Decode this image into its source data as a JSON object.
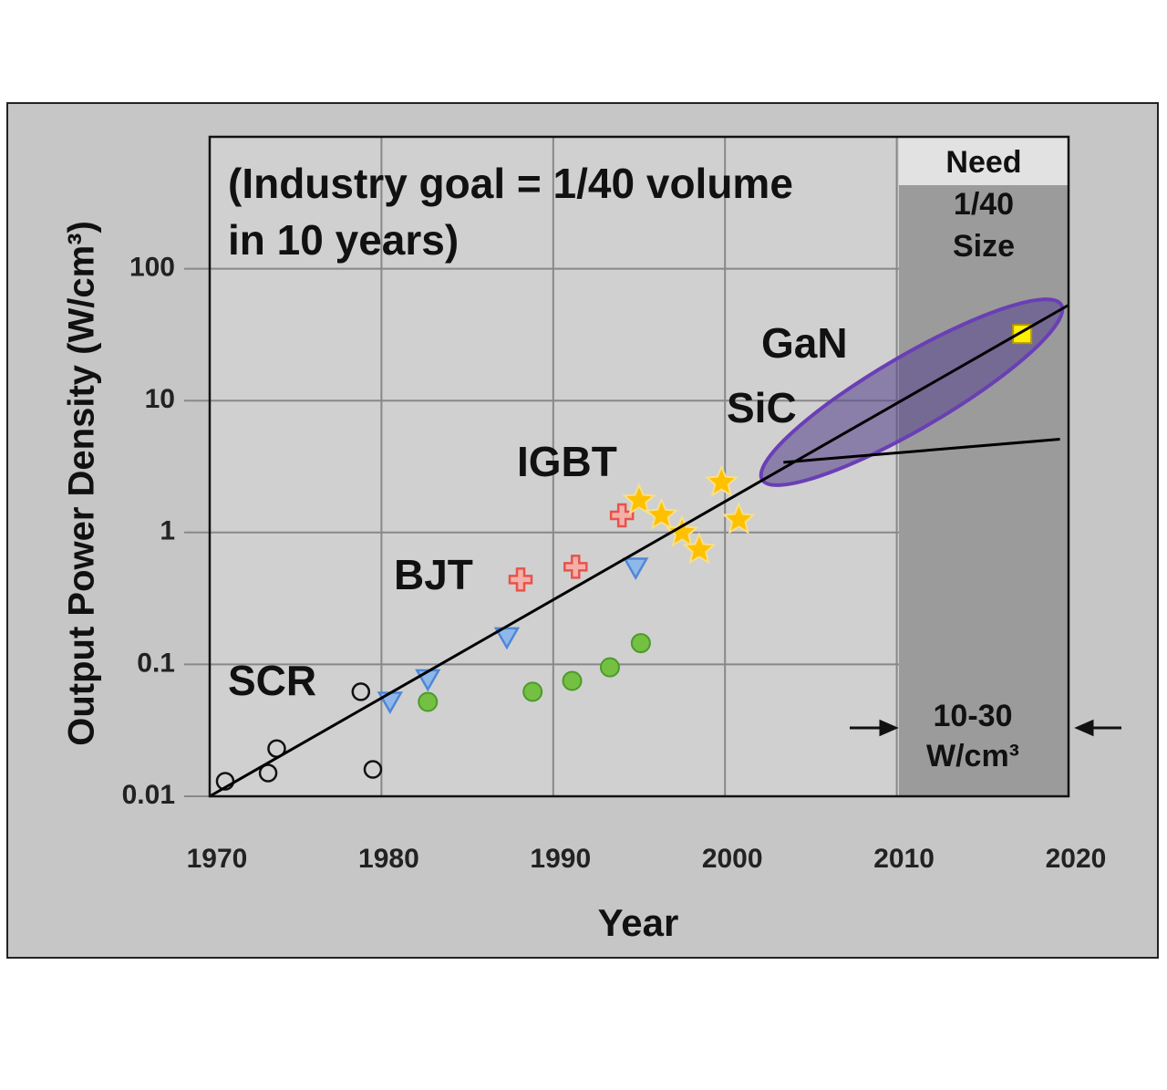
{
  "chart_data": {
    "type": "scatter",
    "xlabel": "Year",
    "ylabel": "Output Power Density (W/cm³)",
    "xlim": [
      1970,
      2020
    ],
    "xticks": [
      1970,
      1980,
      1990,
      2000,
      2010,
      2020
    ],
    "ylim": [
      0.01,
      1000
    ],
    "yticks": [
      0.01,
      0.1,
      1,
      10,
      100
    ],
    "log_y": true,
    "grid": true,
    "annotations": [
      "(Industry goal = 1/40 volume",
      "in 10 years)",
      "SCR",
      "BJT",
      "IGBT",
      "SiC",
      "GaN",
      "Need",
      "1/40",
      "Size",
      "10-30",
      "W/cm³"
    ],
    "series": [
      {
        "marker": "open-circle",
        "color": "#111111",
        "x": [
          1970.9,
          1973.4,
          1973.9,
          1978.8,
          1979.5
        ],
        "values": [
          0.013,
          0.015,
          0.023,
          0.062,
          0.016
        ]
      },
      {
        "marker": "triangle-down",
        "color": "#4f87d6",
        "x": [
          1980.5,
          1982.7,
          1987.3,
          1994.8
        ],
        "values": [
          0.052,
          0.077,
          0.16,
          0.54
        ]
      },
      {
        "marker": "circle",
        "color": "#74c043",
        "x": [
          1982.7,
          1988.8,
          1991.1,
          1993.3,
          1995.1
        ],
        "values": [
          0.052,
          0.062,
          0.075,
          0.095,
          0.145
        ]
      },
      {
        "marker": "cross",
        "color": "#e8534a",
        "x": [
          1988.1,
          1991.3,
          1994.0
        ],
        "values": [
          0.44,
          0.55,
          1.35
        ]
      },
      {
        "marker": "star",
        "color": "#ffc000",
        "x": [
          1995.0,
          1996.3,
          1997.5,
          1998.5,
          1999.8,
          2000.8
        ],
        "values": [
          1.75,
          1.35,
          1.0,
          0.74,
          2.4,
          1.25
        ]
      },
      {
        "marker": "square",
        "color": "#ffef00",
        "x": [
          2017.3
        ],
        "values": [
          32
        ]
      },
      {
        "marker": "line",
        "color": "#000000",
        "x": [
          1970,
          2020
        ],
        "values": [
          0.01,
          53
        ]
      },
      {
        "marker": "line",
        "color": "#000000",
        "x": [
          2003.4,
          2019.5
        ],
        "values": [
          3.4,
          5.1
        ]
      }
    ]
  }
}
